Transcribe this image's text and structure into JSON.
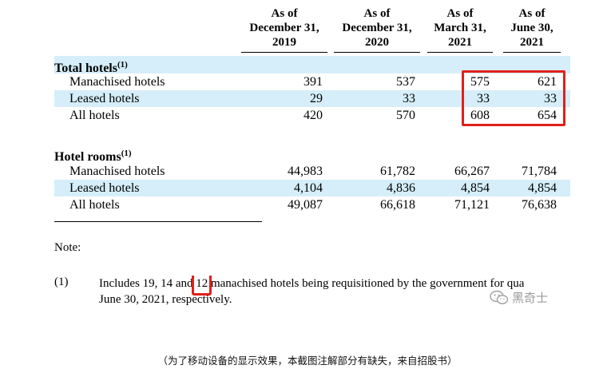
{
  "columns": [
    {
      "line1": "As of",
      "line2": "December 31,",
      "line3": "2019"
    },
    {
      "line1": "As of",
      "line2": "December 31,",
      "line3": "2020"
    },
    {
      "line1": "As of",
      "line2": "March 31,",
      "line3": "2021"
    },
    {
      "line1": "As of",
      "line2": "June 30,",
      "line3": "2021"
    }
  ],
  "sections": [
    {
      "title": "Total hotels",
      "sup": "(1)",
      "rows": [
        {
          "label": "Manachised hotels",
          "values": [
            "391",
            "537",
            "575",
            "621"
          ]
        },
        {
          "label": "Leased hotels",
          "values": [
            "29",
            "33",
            "33",
            "33"
          ]
        },
        {
          "label": "All hotels",
          "values": [
            "420",
            "570",
            "608",
            "654"
          ]
        }
      ]
    },
    {
      "title": "Hotel rooms",
      "sup": "(1)",
      "rows": [
        {
          "label": "Manachised hotels",
          "values": [
            "44,983",
            "61,782",
            "66,267",
            "71,784"
          ]
        },
        {
          "label": "Leased hotels",
          "values": [
            "4,104",
            "4,836",
            "4,854",
            "4,854"
          ]
        },
        {
          "label": "All hotels",
          "values": [
            "49,087",
            "66,618",
            "71,121",
            "76,638"
          ]
        }
      ]
    }
  ],
  "note": {
    "title": "Note:",
    "marker": "(1)",
    "text_before": "Includes 19, 14 and ",
    "highlight": "12",
    "text_after": " manachised hotels being requisitioned by the government for qua",
    "line2": "June 30, 2021, respectively."
  },
  "watermark": {
    "text": "黑奇士",
    "icon": "wechat-icon"
  },
  "caption": "（为了移动设备的显示效果，本截图注解部分有缺失，来自招股书）",
  "colors": {
    "shade": "#d5eef9",
    "highlight": "#e0201a"
  }
}
